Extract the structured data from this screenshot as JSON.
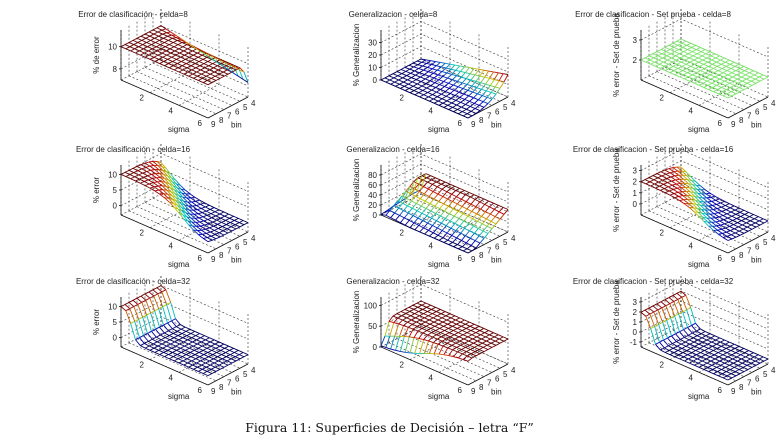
{
  "chart_data": [
    {
      "id": "p1",
      "type": "surface",
      "title": "Error de clasificación - celda=8",
      "xlabel": "bin",
      "ylabel": "sigma",
      "zlabel": "% de error",
      "xticks": [
        "9",
        "8",
        "7",
        "6",
        "5",
        "4"
      ],
      "yticks": [
        "2",
        "4",
        "6"
      ],
      "zticks": [
        "8",
        "10"
      ],
      "zlim": [
        7,
        11.5
      ],
      "surface": "flat_then_drop_bin4",
      "zbase": 10,
      "zlow": 8.3,
      "colormap": "jet"
    },
    {
      "id": "p2",
      "type": "surface",
      "title": "Generalizacion - celda=8",
      "xlabel": "bin",
      "ylabel": "sigma",
      "zlabel": "% Generalizacion",
      "xticks": [
        "9",
        "8",
        "7",
        "6",
        "5",
        "4"
      ],
      "yticks": [
        "2",
        "4",
        "6"
      ],
      "zticks": [
        "0",
        "10",
        "20",
        "30"
      ],
      "zlim": [
        0,
        40
      ],
      "surface": "rise_low_bin_high_sigma",
      "zbase": 0,
      "zhigh": 18,
      "colormap": "jet"
    },
    {
      "id": "p3",
      "type": "surface",
      "title": "Error de clasificacion - Set prueba - celda=8",
      "xlabel": "bin",
      "ylabel": "sigma",
      "zlabel": "% error - Set de prueba",
      "xticks": [
        "9",
        "8",
        "7",
        "6",
        "5",
        "4"
      ],
      "yticks": [
        "2",
        "4",
        "6"
      ],
      "zticks": [
        "2",
        "3"
      ],
      "zlim": [
        1,
        3.5
      ],
      "surface": "flat",
      "zbase": 2,
      "colormap": "green"
    },
    {
      "id": "p4",
      "type": "surface",
      "title": "Error de clasificación - celda=16",
      "xlabel": "bin",
      "ylabel": "sigma",
      "zlabel": "% error",
      "xticks": [
        "9",
        "8",
        "7",
        "6",
        "5",
        "4"
      ],
      "yticks": [
        "2",
        "4",
        "6"
      ],
      "zticks": [
        "0",
        "5",
        "10"
      ],
      "zlim": [
        -3,
        13
      ],
      "surface": "step_sigma_drop",
      "zbase": 10,
      "zlow": 0,
      "colormap": "jet"
    },
    {
      "id": "p5",
      "type": "surface",
      "title": "Generalizacion - celda=16",
      "xlabel": "bin",
      "ylabel": "sigma",
      "zlabel": "% Generalizacion",
      "xticks": [
        "9",
        "8",
        "7",
        "6",
        "5",
        "4"
      ],
      "yticks": [
        "2",
        "4",
        "6"
      ],
      "zticks": [
        "0",
        "20",
        "40",
        "60",
        "80"
      ],
      "zlim": [
        0,
        100
      ],
      "surface": "ridge_rise",
      "zbase": 0,
      "zhigh": 45,
      "colormap": "jet"
    },
    {
      "id": "p6",
      "type": "surface",
      "title": "Error de clasificacion - Set prueba - celda=16",
      "xlabel": "bin",
      "ylabel": "sigma",
      "zlabel": "% error - Set de prueba",
      "xticks": [
        "9",
        "8",
        "7",
        "6",
        "5",
        "4"
      ],
      "yticks": [
        "2",
        "4",
        "6"
      ],
      "zticks": [
        "0",
        "1",
        "2",
        "3"
      ],
      "zlim": [
        -1,
        3.5
      ],
      "surface": "step_sigma_drop",
      "zbase": 2,
      "zlow": 0,
      "colormap": "jet"
    },
    {
      "id": "p7",
      "type": "surface",
      "title": "Error de clasificación - celda=32",
      "xlabel": "bin",
      "ylabel": "sigma",
      "zlabel": "% error",
      "xticks": [
        "9",
        "8",
        "7",
        "6",
        "5",
        "4"
      ],
      "yticks": [
        "2",
        "4",
        "6"
      ],
      "zticks": [
        "0",
        "5",
        "10"
      ],
      "zlim": [
        -3,
        13
      ],
      "surface": "sharp_sigma_drop",
      "zbase": 10,
      "zlow": 0,
      "colormap": "jet"
    },
    {
      "id": "p8",
      "type": "surface",
      "title": "Generalizacion - celda=32",
      "xlabel": "bin",
      "ylabel": "sigma",
      "zlabel": "% Generalizacion",
      "xticks": [
        "9",
        "8",
        "7",
        "6",
        "5",
        "4"
      ],
      "yticks": [
        "2",
        "4",
        "6"
      ],
      "zticks": [
        "0",
        "50",
        "100"
      ],
      "zlim": [
        0,
        120
      ],
      "surface": "plateau_rise",
      "zbase": 0,
      "zhigh": 60,
      "colormap": "jet"
    },
    {
      "id": "p9",
      "type": "surface",
      "title": "Error de clasificacion - Set prueba - celda=32",
      "xlabel": "bin",
      "ylabel": "sigma",
      "zlabel": "% error - Set de prueba",
      "xticks": [
        "9",
        "8",
        "7",
        "6",
        "5",
        "4"
      ],
      "yticks": [
        "2",
        "4",
        "6"
      ],
      "zticks": [
        "-1",
        "0",
        "1",
        "2",
        "3"
      ],
      "zlim": [
        -1.5,
        3.5
      ],
      "surface": "sharp_sigma_drop",
      "zbase": 2,
      "zlow": -1,
      "colormap": "jet"
    }
  ],
  "caption": "Figura 11: Superficies de Decisión – letra “F”"
}
